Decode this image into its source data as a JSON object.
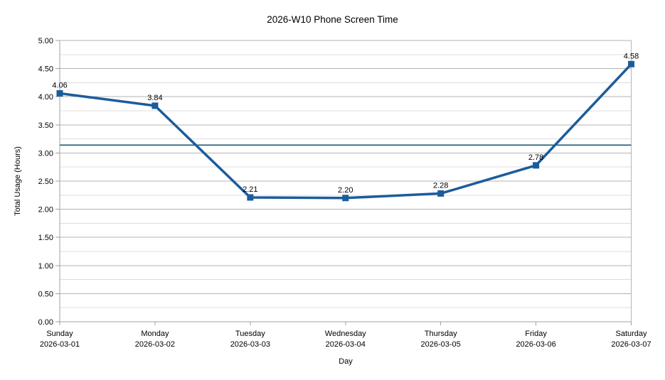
{
  "chart_data": {
    "type": "line",
    "title": "2026-W10 Phone Screen Time",
    "xlabel": "Day",
    "ylabel": "Total Usage (Hours)",
    "categories": [
      "Sunday",
      "Monday",
      "Tuesday",
      "Wednesday",
      "Thursday",
      "Friday",
      "Saturday"
    ],
    "category_dates": [
      "2026-03-01",
      "2026-03-02",
      "2026-03-03",
      "2026-03-04",
      "2026-03-05",
      "2026-03-06",
      "2026-03-07"
    ],
    "series": [
      {
        "name": "Total Usage (Hours)",
        "values": [
          4.06,
          3.84,
          2.21,
          2.2,
          2.28,
          2.78,
          4.58
        ],
        "labels": [
          "4.06",
          "3.84",
          "2.21",
          "2.20",
          "2.28",
          "2.78",
          "4.58"
        ],
        "marker": "square"
      }
    ],
    "reference_line_value": 3.14,
    "ylim": [
      0,
      5
    ],
    "y_major_step": 0.5,
    "y_minor_step": 0.25,
    "y_tick_labels": [
      "0.00",
      "0.50",
      "1.00",
      "1.50",
      "2.00",
      "2.50",
      "3.00",
      "3.50",
      "4.00",
      "4.50",
      "5.00"
    ],
    "grid": {
      "horizontal_major": true,
      "horizontal_minor": true,
      "vertical": false
    },
    "legend": "none",
    "colors": {
      "series": "#1B5C9C",
      "reference_line": "#14506E",
      "major_gridline": "#B3B3B3",
      "minor_gridline": "#DCDCDC",
      "axis": "#A0A0A0",
      "text": "#000000",
      "background": "#FFFFFF"
    }
  }
}
